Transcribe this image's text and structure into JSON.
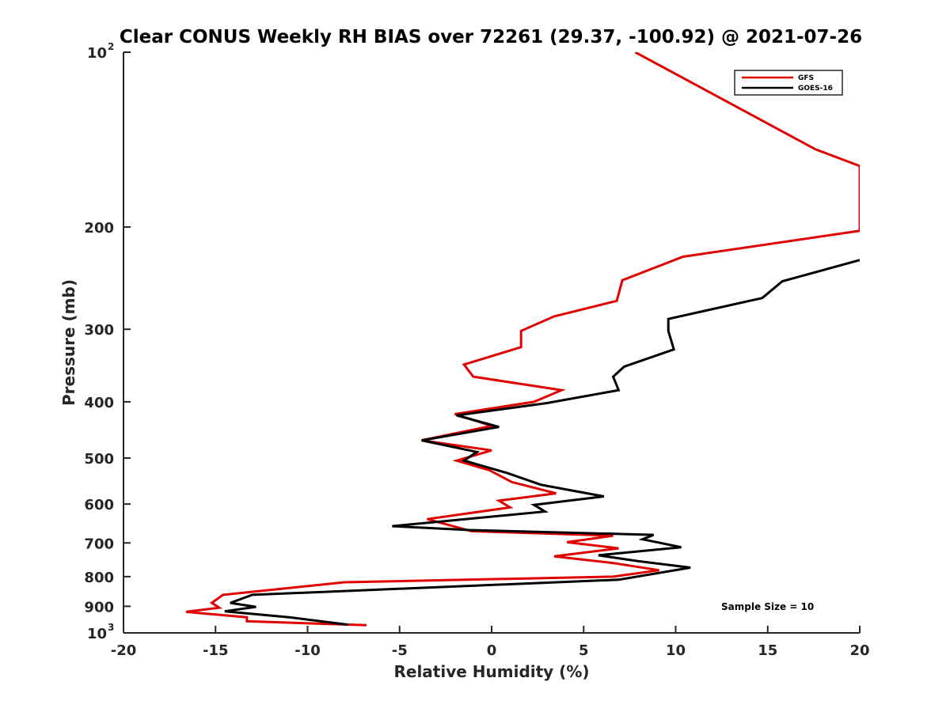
{
  "chart_data": {
    "type": "line",
    "title": "Clear CONUS Weekly RH BIAS over 72261 (29.37, -100.92) @ 2021-07-26",
    "xlabel": "Relative Humidity (%)",
    "ylabel": "Pressure (mb)",
    "xlim": [
      -20,
      20
    ],
    "ylim": [
      100,
      1000
    ],
    "y_scale": "log",
    "y_reversed": true,
    "x_ticks": [
      "-20",
      "-15",
      "-10",
      "-5",
      "0",
      "5",
      "10",
      "15",
      "20"
    ],
    "y_ticks": [
      {
        "value": 100,
        "label": "10",
        "exp": "2"
      },
      {
        "value": 200,
        "label": "200"
      },
      {
        "value": 300,
        "label": "300"
      },
      {
        "value": 400,
        "label": "400"
      },
      {
        "value": 500,
        "label": "500"
      },
      {
        "value": 600,
        "label": "600"
      },
      {
        "value": 700,
        "label": "700"
      },
      {
        "value": 800,
        "label": "800"
      },
      {
        "value": 900,
        "label": "900"
      },
      {
        "value": 1000,
        "label": "10",
        "exp": "3"
      }
    ],
    "grid": false,
    "legend_position": "top-right",
    "annotation": "Sample Size = 10",
    "series": [
      {
        "name": "GFS",
        "color": "#e00000",
        "points": [
          [
            7.8,
            100
          ],
          [
            17.6,
            147
          ],
          [
            20,
            157
          ],
          [
            20,
            203
          ],
          [
            10.4,
            225
          ],
          [
            7.1,
            247
          ],
          [
            6.8,
            268
          ],
          [
            3.4,
            285
          ],
          [
            1.6,
            302
          ],
          [
            1.6,
            322
          ],
          [
            -1.5,
            345
          ],
          [
            -1.0,
            362
          ],
          [
            3.8,
            382
          ],
          [
            2.3,
            400
          ],
          [
            -2.0,
            420
          ],
          [
            0.0,
            440
          ],
          [
            -3.8,
            466
          ],
          [
            0.0,
            485
          ],
          [
            -1.9,
            505
          ],
          [
            -0.1,
            525
          ],
          [
            1.1,
            550
          ],
          [
            3.5,
            575
          ],
          [
            0.4,
            592
          ],
          [
            1.0,
            608
          ],
          [
            -3.5,
            637
          ],
          [
            -1.1,
            668
          ],
          [
            6.6,
            680
          ],
          [
            4.1,
            698
          ],
          [
            6.9,
            715
          ],
          [
            3.4,
            738
          ],
          [
            6.6,
            758
          ],
          [
            9.1,
            780
          ],
          [
            6.6,
            800
          ],
          [
            -8.0,
            818
          ],
          [
            -14.6,
            860
          ],
          [
            -15.2,
            888
          ],
          [
            -14.8,
            905
          ],
          [
            -16.6,
            920
          ],
          [
            -13.3,
            940
          ],
          [
            -13.3,
            955
          ],
          [
            -6.8,
            970
          ]
        ]
      },
      {
        "name": "GOES-16",
        "color": "#000000",
        "points": [
          [
            20,
            228
          ],
          [
            15.8,
            248
          ],
          [
            14.7,
            265
          ],
          [
            9.6,
            288
          ],
          [
            9.6,
            302
          ],
          [
            9.9,
            325
          ],
          [
            7.2,
            348
          ],
          [
            6.6,
            362
          ],
          [
            6.9,
            382
          ],
          [
            3.0,
            402
          ],
          [
            -1.9,
            422
          ],
          [
            0.4,
            442
          ],
          [
            -3.8,
            466
          ],
          [
            -0.8,
            488
          ],
          [
            -1.5,
            505
          ],
          [
            0.8,
            530
          ],
          [
            2.7,
            556
          ],
          [
            6.1,
            582
          ],
          [
            2.3,
            602
          ],
          [
            2.9,
            618
          ],
          [
            -5.4,
            655
          ],
          [
            -1.2,
            665
          ],
          [
            8.8,
            678
          ],
          [
            8.2,
            690
          ],
          [
            10.3,
            712
          ],
          [
            5.8,
            735
          ],
          [
            7.9,
            752
          ],
          [
            10.8,
            772
          ],
          [
            6.9,
            810
          ],
          [
            -13.0,
            860
          ],
          [
            -14.2,
            888
          ],
          [
            -12.8,
            902
          ],
          [
            -14.5,
            918
          ],
          [
            -11.0,
            940
          ],
          [
            -7.8,
            968
          ]
        ]
      }
    ]
  }
}
